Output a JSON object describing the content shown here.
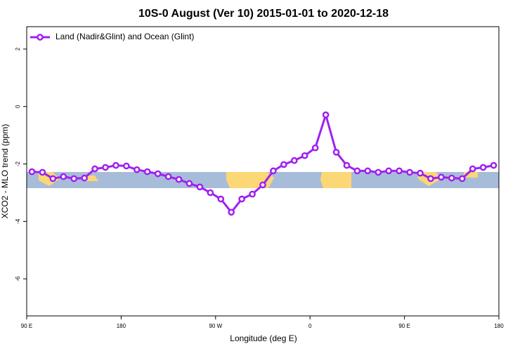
{
  "chart_data": {
    "type": "line",
    "title": "10S-0 August (Ver 10)   2015-01-01 to 2020-12-18",
    "x_label": "Longitude (deg E)",
    "y_label": "XCO2 - MLO trend (ppm)",
    "x": [
      95,
      105,
      115,
      125,
      135,
      145,
      155,
      165,
      175,
      185,
      195,
      205,
      215,
      225,
      235,
      245,
      255,
      265,
      275,
      285,
      295,
      305,
      315,
      325,
      335,
      345,
      355,
      365,
      375,
      385,
      395,
      405,
      415,
      425,
      435,
      445,
      455,
      465,
      475,
      485,
      495,
      505,
      515,
      525,
      535
    ],
    "series": [
      {
        "name": "Land (Nadir&Glint) and Ocean (Glint)",
        "color": "#a020f0",
        "values": [
          -2.27,
          -2.29,
          -2.51,
          -2.44,
          -2.51,
          -2.49,
          -2.17,
          -2.12,
          -2.05,
          -2.07,
          -2.2,
          -2.27,
          -2.34,
          -2.44,
          -2.54,
          -2.68,
          -2.8,
          -3.0,
          -3.22,
          -3.68,
          -3.22,
          -3.05,
          -2.73,
          -2.24,
          -2.02,
          -1.88,
          -1.71,
          -1.44,
          -0.29,
          -1.59,
          -2.05,
          -2.24,
          -2.24,
          -2.29,
          -2.24,
          -2.24,
          -2.29,
          -2.32,
          -2.51,
          -2.46,
          -2.49,
          -2.51,
          -2.17,
          -2.12,
          -2.05
        ]
      }
    ],
    "xlim": [
      90,
      540
    ],
    "xticks": [
      {
        "value": 90,
        "label": "90 E"
      },
      180,
      {
        "value": 270,
        "label": "90 W"
      },
      {
        "value": 360,
        "label": "0"
      },
      {
        "value": 450,
        "label": "90 E"
      },
      {
        "value": 540,
        "label": "180"
      }
    ],
    "ylim": [
      -7.29,
      2.78
    ],
    "yticks": [
      2,
      0,
      -2,
      -4,
      -6
    ],
    "legend": "top-left"
  }
}
